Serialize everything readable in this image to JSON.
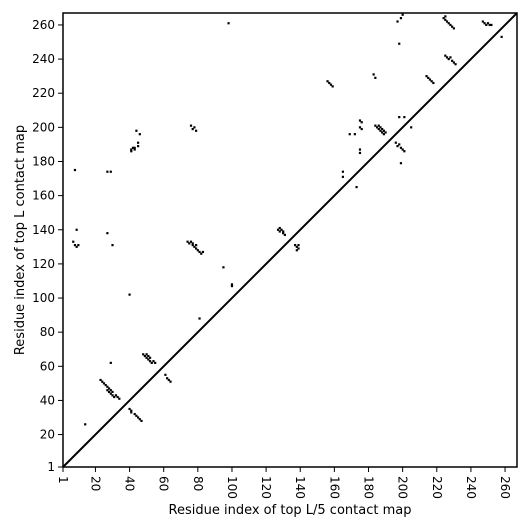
{
  "chart_data": {
    "type": "scatter",
    "title": "",
    "xlabel": "Residue index of top L/5 contact map",
    "ylabel": "Residue index of top L contact map",
    "xlim": [
      1,
      267
    ],
    "ylim": [
      1,
      267
    ],
    "grid": false,
    "x_ticks": [
      1,
      20,
      40,
      60,
      80,
      100,
      120,
      140,
      160,
      180,
      200,
      220,
      240,
      260
    ],
    "y_ticks": [
      1,
      20,
      40,
      60,
      80,
      100,
      120,
      140,
      160,
      180,
      200,
      220,
      240,
      260
    ],
    "diagonal": [
      [
        1,
        1
      ],
      [
        267,
        267
      ]
    ],
    "series": [
      {
        "color": "#000000",
        "points": [
          [
            14,
            26
          ],
          [
            23,
            52
          ],
          [
            24,
            51
          ],
          [
            25,
            50
          ],
          [
            26,
            49
          ],
          [
            27,
            48
          ],
          [
            27,
            46
          ],
          [
            28,
            47
          ],
          [
            28,
            45
          ],
          [
            29,
            46
          ],
          [
            29,
            44
          ],
          [
            30,
            45
          ],
          [
            30,
            43
          ],
          [
            31,
            42
          ],
          [
            32,
            43
          ],
          [
            33,
            42
          ],
          [
            34,
            41
          ],
          [
            29,
            62
          ],
          [
            40,
            35
          ],
          [
            41,
            34
          ],
          [
            41,
            33
          ],
          [
            43,
            32
          ],
          [
            44,
            31
          ],
          [
            45,
            30
          ],
          [
            46,
            29
          ],
          [
            47,
            28
          ],
          [
            40,
            102
          ],
          [
            48,
            67
          ],
          [
            49,
            66
          ],
          [
            50,
            67
          ],
          [
            50,
            65
          ],
          [
            51,
            66
          ],
          [
            51,
            64
          ],
          [
            52,
            65
          ],
          [
            52,
            63
          ],
          [
            53,
            62
          ],
          [
            54,
            63
          ],
          [
            55,
            62
          ],
          [
            61,
            55
          ],
          [
            62,
            53
          ],
          [
            63,
            52
          ],
          [
            64,
            51
          ],
          [
            81,
            88
          ],
          [
            95,
            118
          ],
          [
            100,
            107
          ],
          [
            100,
            108
          ],
          [
            74,
            133
          ],
          [
            75,
            132
          ],
          [
            76,
            133
          ],
          [
            77,
            132
          ],
          [
            77,
            131
          ],
          [
            78,
            130
          ],
          [
            79,
            129
          ],
          [
            79,
            131
          ],
          [
            80,
            128
          ],
          [
            81,
            127
          ],
          [
            82,
            126
          ],
          [
            83,
            127
          ],
          [
            127,
            140
          ],
          [
            128,
            141
          ],
          [
            128,
            139
          ],
          [
            129,
            140
          ],
          [
            130,
            139
          ],
          [
            130,
            138
          ],
          [
            131,
            137
          ],
          [
            137,
            131
          ],
          [
            138,
            130
          ],
          [
            139,
            131
          ],
          [
            139,
            129
          ],
          [
            138,
            128
          ],
          [
            7,
            133
          ],
          [
            8,
            131
          ],
          [
            9,
            130
          ],
          [
            10,
            131
          ],
          [
            9,
            140
          ],
          [
            8,
            175
          ],
          [
            27,
            138
          ],
          [
            30,
            131
          ],
          [
            27,
            174
          ],
          [
            29,
            174
          ],
          [
            41,
            186
          ],
          [
            41,
            187
          ],
          [
            42,
            188
          ],
          [
            43,
            187
          ],
          [
            43,
            188
          ],
          [
            45,
            189
          ],
          [
            45,
            191
          ],
          [
            44,
            198
          ],
          [
            46,
            196
          ],
          [
            76,
            201
          ],
          [
            77,
            199
          ],
          [
            78,
            200
          ],
          [
            79,
            198
          ],
          [
            98,
            261
          ],
          [
            156,
            227
          ],
          [
            157,
            226
          ],
          [
            158,
            225
          ],
          [
            159,
            224
          ],
          [
            165,
            174
          ],
          [
            165,
            171
          ],
          [
            169,
            196
          ],
          [
            172,
            196
          ],
          [
            173,
            165
          ],
          [
            175,
            187
          ],
          [
            175,
            185
          ],
          [
            175,
            204
          ],
          [
            176,
            203
          ],
          [
            175,
            200
          ],
          [
            176,
            199
          ],
          [
            183,
            231
          ],
          [
            184,
            229
          ],
          [
            184,
            201
          ],
          [
            185,
            200
          ],
          [
            186,
            201
          ],
          [
            186,
            199
          ],
          [
            187,
            200
          ],
          [
            187,
            198
          ],
          [
            188,
            199
          ],
          [
            188,
            197
          ],
          [
            189,
            198
          ],
          [
            189,
            196
          ],
          [
            190,
            197
          ],
          [
            196,
            191
          ],
          [
            197,
            189
          ],
          [
            198,
            190
          ],
          [
            199,
            188
          ],
          [
            200,
            187
          ],
          [
            201,
            186
          ],
          [
            199,
            179
          ],
          [
            198,
            206
          ],
          [
            201,
            206
          ],
          [
            205,
            200
          ],
          [
            197,
            262
          ],
          [
            199,
            264
          ],
          [
            200,
            266
          ],
          [
            198,
            249
          ],
          [
            214,
            230
          ],
          [
            215,
            229
          ],
          [
            216,
            228
          ],
          [
            217,
            227
          ],
          [
            218,
            226
          ],
          [
            224,
            264
          ],
          [
            225,
            265
          ],
          [
            225,
            263
          ],
          [
            226,
            262
          ],
          [
            227,
            261
          ],
          [
            228,
            260
          ],
          [
            229,
            259
          ],
          [
            230,
            258
          ],
          [
            225,
            242
          ],
          [
            226,
            241
          ],
          [
            227,
            240
          ],
          [
            228,
            241
          ],
          [
            229,
            239
          ],
          [
            230,
            238
          ],
          [
            231,
            237
          ],
          [
            247,
            262
          ],
          [
            248,
            261
          ],
          [
            249,
            260
          ],
          [
            250,
            261
          ],
          [
            251,
            260
          ],
          [
            252,
            260
          ],
          [
            258,
            253
          ]
        ]
      }
    ]
  }
}
